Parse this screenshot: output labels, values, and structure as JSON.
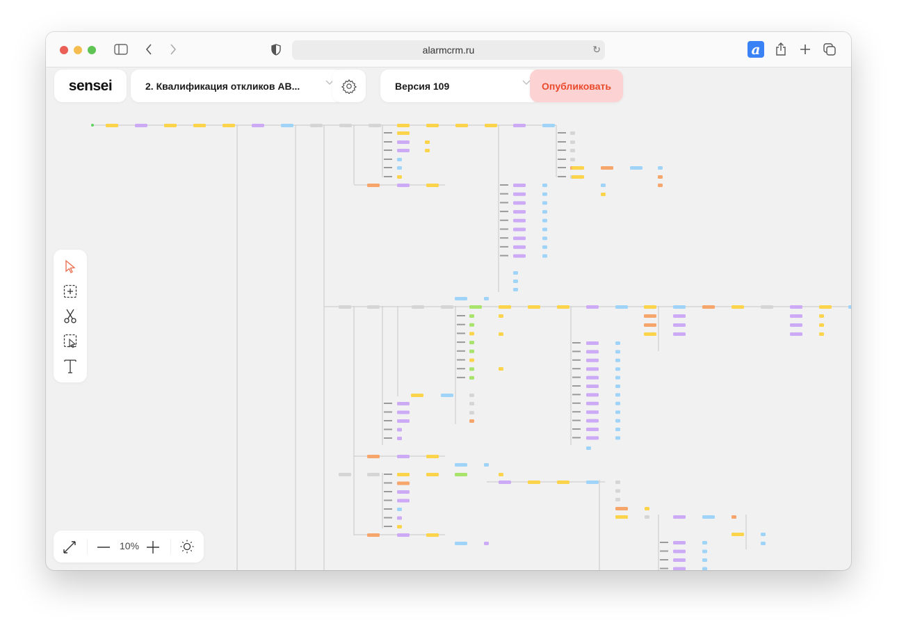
{
  "browser": {
    "url": "alarmcrm.ru",
    "traffic_lights": [
      "#ec5f57",
      "#f5bd4f",
      "#5fc453"
    ],
    "extension_letter": "a",
    "extension_color": "#3b82f6"
  },
  "header": {
    "logo": "sensei",
    "scenario_select": "2. Квалификация откликов АВ...",
    "version_select": "Версия 109",
    "publish_label": "Опубликовать",
    "publish_color": "#ea4a2c"
  },
  "toolbar": {
    "tools": [
      "pointer-icon",
      "add-frame-icon",
      "scissors-icon",
      "select-area-icon",
      "text-icon"
    ],
    "active_tool": "pointer-icon",
    "active_color": "#ea6a4c"
  },
  "zoom_controls": {
    "zoom_level": "10%"
  },
  "canvas": {
    "node_colors": {
      "yellow": "#fbd44b",
      "purple": "#cdaaf6",
      "blue": "#9fd4f8",
      "orange": "#f6a56b",
      "green": "#a8e36c",
      "gray": "#d5d5d5"
    }
  }
}
